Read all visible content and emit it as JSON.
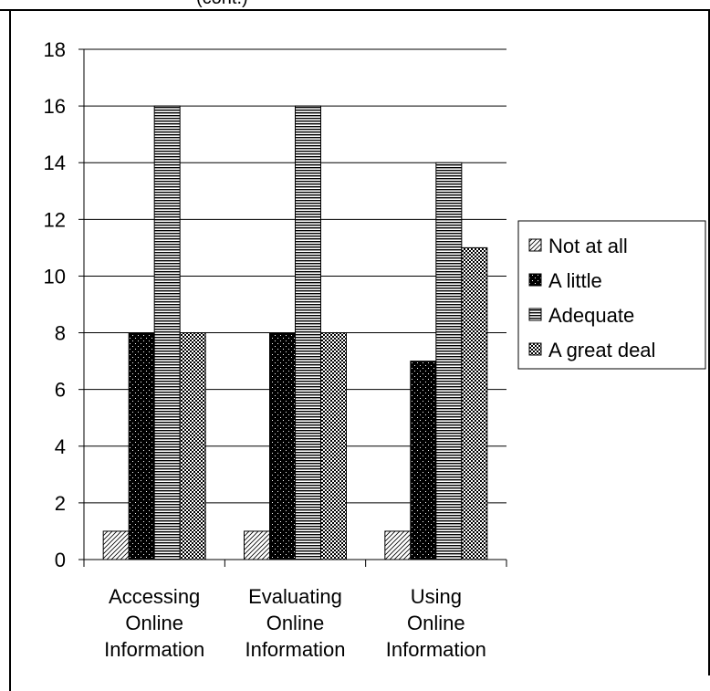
{
  "header_fragment": "(cont.)",
  "chart_data": {
    "type": "bar",
    "categories": [
      [
        "Accessing",
        "Online",
        "Information"
      ],
      [
        "Evaluating",
        "Online",
        "Information"
      ],
      [
        "Using",
        "Online",
        "Information"
      ]
    ],
    "series": [
      {
        "name": "Not at all",
        "values": [
          1,
          1,
          1
        ],
        "pattern": "diagonal-hatch"
      },
      {
        "name": "A little",
        "values": [
          8,
          8,
          7
        ],
        "pattern": "black-dots"
      },
      {
        "name": "Adequate",
        "values": [
          16,
          16,
          14
        ],
        "pattern": "horizontal-lines"
      },
      {
        "name": "A great deal",
        "values": [
          8,
          8,
          11
        ],
        "pattern": "checker"
      }
    ],
    "ylim": [
      0,
      18
    ],
    "yticks": [
      0,
      2,
      4,
      6,
      8,
      10,
      12,
      14,
      16,
      18
    ],
    "grid": true,
    "legend_position": "right"
  }
}
